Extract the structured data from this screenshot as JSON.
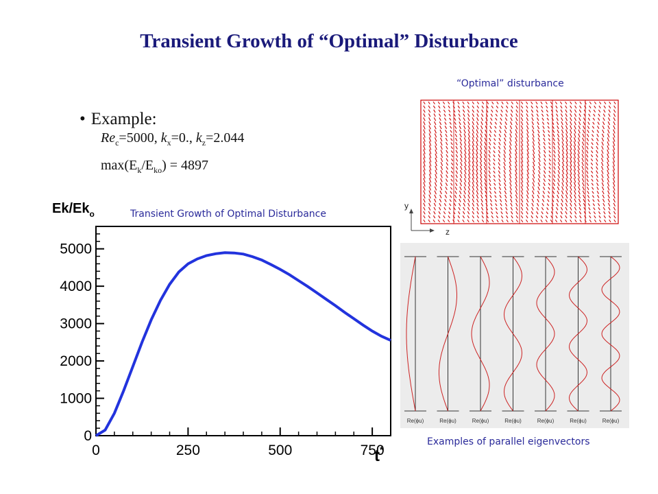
{
  "slide": {
    "title": "Transient Growth of “Optimal” Disturbance",
    "bullet": "Example:",
    "params": {
      "re": "Re",
      "re_sub": "c",
      "re_val": "=5000, ",
      "kx": "k",
      "kx_sub": "x",
      "kx_val": "=0., ",
      "kz": "k",
      "kz_sub": "z",
      "kz_val": "=2.044"
    },
    "max_line": {
      "a": "max(E",
      "a_sub": "k",
      "b": "/E",
      "b_sub": "ko",
      "c": ") = 4897"
    }
  },
  "disturbance": {
    "caption": "“Optimal” disturbance",
    "axis_y": "y",
    "axis_z": "z",
    "color": "#cc0000"
  },
  "eigen": {
    "caption": "Examples of parallel eigenvectors",
    "labels": [
      "Re(ϕu)",
      "Re(ϕu)",
      "Re(ϕu)",
      "Re(ϕu)",
      "Re(ϕu)",
      "Re(ϕu)",
      "Re(ϕu)"
    ],
    "modes": [
      1,
      2,
      3,
      4,
      5,
      6,
      7
    ],
    "color": "#cc2222",
    "panel_bg": "#ececec"
  },
  "chart_data": {
    "type": "line",
    "title": "Transient Growth of Optimal Disturbance",
    "ylabel": "Ek/Ek",
    "ylabel_sub": "o",
    "xlabel": "t",
    "xlabel_sup": "*",
    "xlim": [
      0,
      800
    ],
    "ylim": [
      0,
      5600
    ],
    "xticks": [
      0,
      250,
      500,
      750
    ],
    "xtick_labels": [
      "0",
      "250",
      "500",
      "750"
    ],
    "yticks": [
      0,
      1000,
      2000,
      3000,
      4000,
      5000
    ],
    "ytick_labels": [
      "0",
      "1000",
      "2000",
      "3000",
      "4000",
      "5000"
    ],
    "series": [
      {
        "color": "#2233dd",
        "x": [
          0,
          25,
          50,
          75,
          100,
          125,
          150,
          175,
          200,
          225,
          250,
          275,
          300,
          325,
          350,
          375,
          400,
          425,
          450,
          475,
          500,
          525,
          550,
          575,
          600,
          625,
          650,
          675,
          700,
          725,
          750,
          775,
          800
        ],
        "y": [
          0,
          150,
          600,
          1200,
          1850,
          2500,
          3100,
          3620,
          4050,
          4380,
          4600,
          4730,
          4820,
          4870,
          4897,
          4890,
          4860,
          4790,
          4700,
          4580,
          4450,
          4310,
          4150,
          3990,
          3820,
          3650,
          3480,
          3300,
          3130,
          2960,
          2800,
          2660,
          2550
        ]
      }
    ]
  }
}
